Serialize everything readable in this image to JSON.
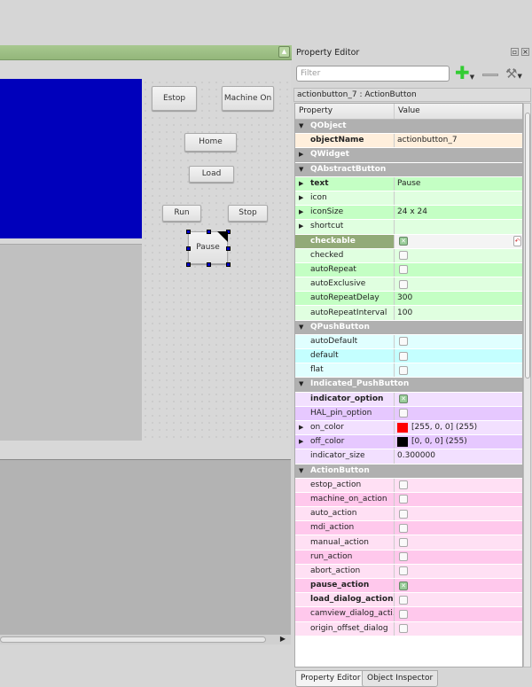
{
  "form": {
    "buttons": [
      {
        "label": "Estop",
        "name": "estop-button"
      },
      {
        "label": "Machine On",
        "name": "machine-on-button"
      },
      {
        "label": "Home",
        "name": "home-button"
      },
      {
        "label": "Load",
        "name": "load-button"
      },
      {
        "label": "Run",
        "name": "run-button"
      },
      {
        "label": "Stop",
        "name": "stop-button"
      },
      {
        "label": "Pause",
        "name": "pause-button"
      }
    ]
  },
  "property_editor": {
    "title": "Property Editor",
    "filter_placeholder": "Filter",
    "object_label": "actionbutton_7 : ActionButton",
    "col_property": "Property",
    "col_value": "Value",
    "rows": [
      {
        "t": "g",
        "n": "QObject",
        "open": true
      },
      {
        "n": "objectName",
        "v": "actionbutton_7",
        "b": true,
        "bg": "#ffefdc"
      },
      {
        "t": "g",
        "n": "QWidget",
        "open": false
      },
      {
        "t": "g",
        "n": "QAbstractButton",
        "open": true
      },
      {
        "n": "text",
        "v": "Pause",
        "b": true,
        "a": true,
        "bg": "#c4ffc4"
      },
      {
        "n": "icon",
        "v": "",
        "a": true,
        "bg": "#e0ffe0"
      },
      {
        "n": "iconSize",
        "v": "24 x 24",
        "a": true,
        "bg": "#c4ffc4"
      },
      {
        "n": "shortcut",
        "v": "",
        "a": true,
        "bg": "#e0ffe0"
      },
      {
        "n": "checkable",
        "c": true,
        "b": true,
        "sel": true,
        "bg": "#92aa78"
      },
      {
        "n": "checked",
        "c": false,
        "bg": "#e0ffe0"
      },
      {
        "n": "autoRepeat",
        "c": false,
        "bg": "#c4ffc4"
      },
      {
        "n": "autoExclusive",
        "c": false,
        "bg": "#e0ffe0"
      },
      {
        "n": "autoRepeatDelay",
        "v": "300",
        "bg": "#c4ffc4"
      },
      {
        "n": "autoRepeatInterval",
        "v": "100",
        "bg": "#e0ffe0"
      },
      {
        "t": "g",
        "n": "QPushButton",
        "open": true
      },
      {
        "n": "autoDefault",
        "c": false,
        "bg": "#e0ffff"
      },
      {
        "n": "default",
        "c": false,
        "bg": "#c4ffff"
      },
      {
        "n": "flat",
        "c": false,
        "bg": "#e0ffff"
      },
      {
        "t": "g",
        "n": "Indicated_PushButton",
        "open": true
      },
      {
        "n": "indicator_option",
        "c": true,
        "b": true,
        "bg": "#f2e0ff"
      },
      {
        "n": "HAL_pin_option",
        "c": false,
        "bg": "#e6c8ff"
      },
      {
        "n": "on_color",
        "v": "[255, 0, 0] (255)",
        "sw": "#ff0000",
        "a": true,
        "bg": "#f2e0ff"
      },
      {
        "n": "off_color",
        "v": "[0, 0, 0] (255)",
        "sw": "#000000",
        "a": true,
        "bg": "#e6c8ff"
      },
      {
        "n": "indicator_size",
        "v": "0.300000",
        "bg": "#f2e0ff"
      },
      {
        "t": "g",
        "n": "ActionButton",
        "open": true
      },
      {
        "n": "estop_action",
        "c": false,
        "bg": "#ffe0f4"
      },
      {
        "n": "machine_on_action",
        "c": false,
        "bg": "#ffc8ec"
      },
      {
        "n": "auto_action",
        "c": false,
        "bg": "#ffe0f4"
      },
      {
        "n": "mdi_action",
        "c": false,
        "bg": "#ffc8ec"
      },
      {
        "n": "manual_action",
        "c": false,
        "bg": "#ffe0f4"
      },
      {
        "n": "run_action",
        "c": false,
        "bg": "#ffc8ec"
      },
      {
        "n": "abort_action",
        "c": false,
        "bg": "#ffe0f4"
      },
      {
        "n": "pause_action",
        "c": true,
        "b": true,
        "bg": "#ffc8ec"
      },
      {
        "n": "load_dialog_action",
        "c": false,
        "b": true,
        "bg": "#ffe0f4"
      },
      {
        "n": "camview_dialog_acti...",
        "c": false,
        "bg": "#ffc8ec"
      },
      {
        "n": "origin_offset_dialog",
        "c": false,
        "bg": "#ffe0f4"
      }
    ]
  },
  "tabs": [
    {
      "label": "Property Editor",
      "active": true
    },
    {
      "label": "Object Inspector",
      "active": false
    }
  ],
  "colors": {
    "accent_titlebar": "#9cbf84",
    "canvas_blue": "#0000bb"
  }
}
